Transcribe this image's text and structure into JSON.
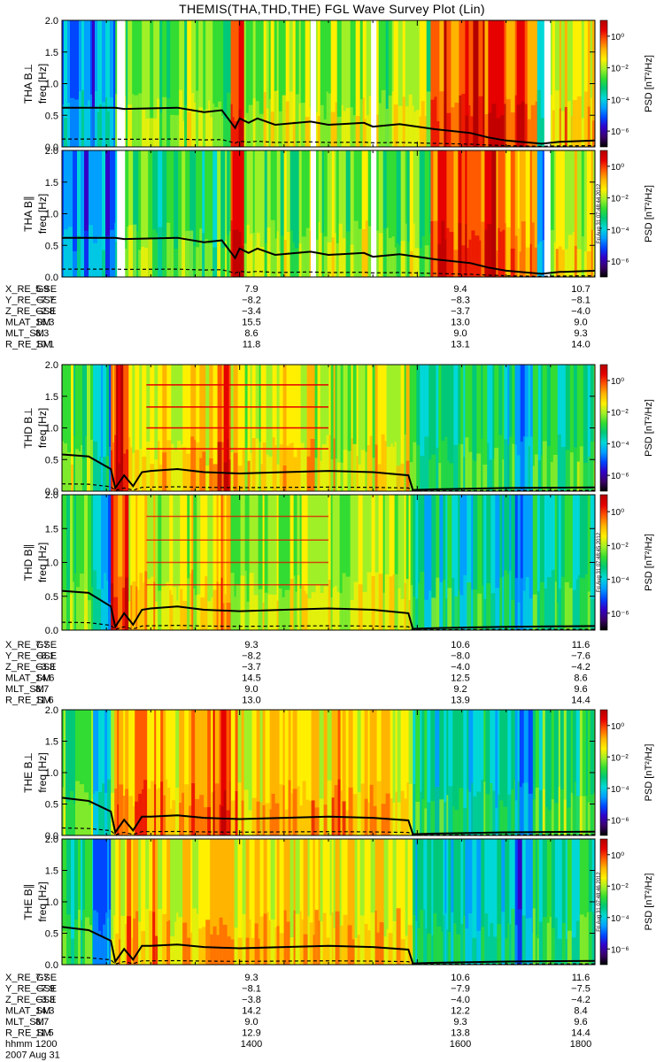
{
  "title": "THEMIS(THA,THD,THE) FGL Wave Survey Plot (Lin)",
  "colors": {
    "colormap": [
      "#000000",
      "#3a006a",
      "#3200c8",
      "#0046ff",
      "#00a0ff",
      "#00d8d8",
      "#00c878",
      "#32dc32",
      "#a0f028",
      "#fff000",
      "#ffb400",
      "#ff5a00",
      "#e60000",
      "#b40000"
    ],
    "trace": "#000000",
    "gap": "#ffffff"
  },
  "stamps": [
    "Fri Aug 31 07:48:44 2012",
    "Fri Aug 31 07:48:45 2012",
    "Fri Aug 31 07:48:46 2012"
  ],
  "chart_data": [
    {
      "type": "heatmap",
      "probe": "THA",
      "time_range": [
        "2007-08-31 12:00",
        "2007-08-31 18:00"
      ],
      "panels": [
        {
          "ylabel": "THA B⊥",
          "unit": "freq [Hz]",
          "ylim": [
            0,
            2.0
          ],
          "yticks": [
            "0.0",
            "0.5",
            "1.0",
            "1.5",
            "2.0"
          ]
        },
        {
          "ylabel": "THA B∥",
          "unit": "freq [Hz]",
          "ylim": [
            0,
            2.0
          ],
          "yticks": [
            "0.0",
            "0.5",
            "1.0",
            "1.5",
            "2.0"
          ]
        }
      ],
      "colorbar": {
        "label": "PSD [nT²/Hz]",
        "scale": "log",
        "range": [
          1e-07,
          10.0
        ],
        "ticks": [
          "10⁰",
          "10⁻²",
          "10⁻⁴",
          "10⁻⁶"
        ]
      },
      "gaps_hours": [
        [
          12.62,
          12.71
        ],
        [
          14.8,
          14.86
        ],
        [
          15.48,
          15.54
        ],
        [
          17.43,
          17.5
        ]
      ],
      "bands": [
        {
          "from": 12.0,
          "to": 12.6,
          "level": 0.3
        },
        {
          "from": 12.6,
          "to": 13.9,
          "level": 0.55
        },
        {
          "from": 13.9,
          "to": 14.05,
          "level": 0.9
        },
        {
          "from": 14.05,
          "to": 16.15,
          "level": 0.6
        },
        {
          "from": 16.15,
          "to": 17.0,
          "level": 0.9
        },
        {
          "from": 17.0,
          "to": 17.35,
          "level": 0.85
        },
        {
          "from": 17.35,
          "to": 17.43,
          "level": 0.35
        },
        {
          "from": 17.5,
          "to": 18.0,
          "level": 0.7
        }
      ],
      "gyro_trace": {
        "x": [
          12.0,
          12.6,
          12.7,
          13.3,
          13.6,
          13.8,
          13.95,
          14.0,
          14.1,
          14.2,
          14.4,
          14.8,
          15.0,
          15.4,
          15.5,
          15.8,
          16.2,
          16.6,
          16.8,
          17.0,
          17.4,
          17.6,
          18.0
        ],
        "y": [
          0.62,
          0.62,
          0.6,
          0.62,
          0.55,
          0.58,
          0.3,
          0.45,
          0.38,
          0.45,
          0.35,
          0.4,
          0.35,
          0.38,
          0.32,
          0.36,
          0.28,
          0.22,
          0.15,
          0.1,
          0.05,
          0.08,
          0.1
        ]
      },
      "ephemeris": {
        "hhmm": [
          "1200",
          "1400",
          "1600",
          "1800"
        ],
        "rows": [
          {
            "label": "X_RE_GSE",
            "values": [
              "5.9",
              "7.9",
              "9.4",
              "10.7"
            ]
          },
          {
            "label": "Y_RE_GSE",
            "values": [
              "−7.7",
              "−8.2",
              "−8.3",
              "−8.1"
            ]
          },
          {
            "label": "Z_RE_GSE",
            "values": [
              "−2.8",
              "−3.4",
              "−3.7",
              "−4.0"
            ]
          },
          {
            "label": "MLAT_SM",
            "values": [
              "16.3",
              "15.5",
              "13.0",
              "9.0"
            ]
          },
          {
            "label": "MLT_SM",
            "values": [
              "8.3",
              "8.6",
              "9.0",
              "9.3"
            ]
          },
          {
            "label": "R_RE_SM",
            "values": [
              "10.1",
              "11.8",
              "13.1",
              "14.0"
            ]
          }
        ]
      }
    },
    {
      "type": "heatmap",
      "probe": "THD",
      "time_range": [
        "2007-08-31 12:00",
        "2007-08-31 18:00"
      ],
      "panels": [
        {
          "ylabel": "THD B⊥",
          "unit": "freq [Hz]",
          "ylim": [
            0,
            2.0
          ],
          "yticks": [
            "0.0",
            "0.5",
            "1.0",
            "1.5",
            "2.0"
          ]
        },
        {
          "ylabel": "THD B∥",
          "unit": "freq [Hz]",
          "ylim": [
            0,
            2.0
          ],
          "yticks": [
            "0.0",
            "0.5",
            "1.0",
            "1.5",
            "2.0"
          ]
        }
      ],
      "colorbar": {
        "label": "PSD [nT²/Hz]",
        "scale": "log",
        "range": [
          1e-07,
          10.0
        ],
        "ticks": [
          "10⁰",
          "10⁻²",
          "10⁻⁴",
          "10⁻⁶"
        ]
      },
      "gaps_hours": [],
      "bands": [
        {
          "from": 12.0,
          "to": 12.35,
          "level": 0.55
        },
        {
          "from": 12.35,
          "to": 12.55,
          "level": 0.35
        },
        {
          "from": 12.55,
          "to": 12.75,
          "level": 0.88
        },
        {
          "from": 12.75,
          "to": 13.7,
          "level": 0.68
        },
        {
          "from": 13.7,
          "to": 13.9,
          "level": 0.82
        },
        {
          "from": 13.9,
          "to": 15.95,
          "level": 0.65
        },
        {
          "from": 15.95,
          "to": 17.1,
          "level": 0.45
        },
        {
          "from": 17.1,
          "to": 17.3,
          "level": 0.3
        },
        {
          "from": 17.3,
          "to": 18.0,
          "level": 0.5
        }
      ],
      "lines_hz": [
        1.68,
        1.33,
        1.0,
        0.67
      ],
      "gyro_trace": {
        "x": [
          12.0,
          12.3,
          12.55,
          12.6,
          12.7,
          12.8,
          12.9,
          13.0,
          13.3,
          13.6,
          14.0,
          14.5,
          15.0,
          15.5,
          15.9,
          15.95,
          16.2,
          17.0,
          18.0
        ],
        "y": [
          0.58,
          0.55,
          0.35,
          0.05,
          0.25,
          0.08,
          0.3,
          0.32,
          0.35,
          0.3,
          0.28,
          0.3,
          0.32,
          0.3,
          0.25,
          0.02,
          0.03,
          0.05,
          0.06
        ]
      },
      "ephemeris": {
        "hhmm": [
          "1200",
          "1400",
          "1600",
          "1800"
        ],
        "rows": [
          {
            "label": "X_RE_GSE",
            "values": [
              "7.7",
              "9.3",
              "10.6",
              "11.6"
            ]
          },
          {
            "label": "Y_RE_GSE",
            "values": [
              "−8.1",
              "−8.2",
              "−8.0",
              "−7.6"
            ]
          },
          {
            "label": "Z_RE_GSE",
            "values": [
              "−3.3",
              "−3.7",
              "−4.0",
              "−4.2"
            ]
          },
          {
            "label": "MLAT_SM",
            "values": [
              "14.6",
              "14.5",
              "12.5",
              "8.6"
            ]
          },
          {
            "label": "MLT_SM",
            "values": [
              "8.7",
              "9.0",
              "9.2",
              "9.6"
            ]
          },
          {
            "label": "R_RE_SM",
            "values": [
              "11.6",
              "13.0",
              "13.9",
              "14.4"
            ]
          }
        ]
      }
    },
    {
      "type": "heatmap",
      "probe": "THE",
      "time_range": [
        "2007-08-31 12:00",
        "2007-08-31 18:00"
      ],
      "panels": [
        {
          "ylabel": "THE B⊥",
          "unit": "freq [Hz]",
          "ylim": [
            0,
            2.0
          ],
          "yticks": [
            "0.0",
            "0.5",
            "1.0",
            "1.5",
            "2.0"
          ]
        },
        {
          "ylabel": "THE B∥",
          "unit": "freq [Hz]",
          "ylim": [
            0,
            2.0
          ],
          "yticks": [
            "0.0",
            "0.5",
            "1.0",
            "1.5",
            "2.0"
          ]
        }
      ],
      "colorbar": {
        "label": "PSD [nT²/Hz]",
        "scale": "log",
        "range": [
          1e-07,
          10.0
        ],
        "ticks": [
          "10⁰",
          "10⁻²",
          "10⁻⁴",
          "10⁻⁶"
        ]
      },
      "gaps_hours": [],
      "bands": [
        {
          "from": 12.0,
          "to": 12.35,
          "level": 0.55
        },
        {
          "from": 12.35,
          "to": 12.55,
          "level": 0.35
        },
        {
          "from": 12.55,
          "to": 13.7,
          "level": 0.75
        },
        {
          "from": 13.7,
          "to": 13.9,
          "level": 0.85
        },
        {
          "from": 13.9,
          "to": 15.95,
          "level": 0.72
        },
        {
          "from": 15.95,
          "to": 17.1,
          "level": 0.45
        },
        {
          "from": 17.1,
          "to": 17.3,
          "level": 0.3
        },
        {
          "from": 17.3,
          "to": 18.0,
          "level": 0.5
        }
      ],
      "gyro_trace": {
        "x": [
          12.0,
          12.3,
          12.55,
          12.6,
          12.7,
          12.8,
          12.9,
          13.0,
          13.3,
          13.6,
          14.0,
          14.5,
          15.0,
          15.5,
          15.9,
          15.95,
          16.2,
          17.0,
          18.0
        ],
        "y": [
          0.6,
          0.55,
          0.38,
          0.05,
          0.25,
          0.08,
          0.3,
          0.3,
          0.32,
          0.28,
          0.26,
          0.28,
          0.3,
          0.28,
          0.24,
          0.02,
          0.03,
          0.05,
          0.06
        ]
      },
      "ephemeris": {
        "hhmm": [
          "1200",
          "1400",
          "1600",
          "1800"
        ],
        "rows": [
          {
            "label": "X_RE_GSE",
            "values": [
              "7.7",
              "9.3",
              "10.6",
              "11.6"
            ]
          },
          {
            "label": "Y_RE_GSE",
            "values": [
              "−7.9",
              "−8.1",
              "−7.9",
              "−7.5"
            ]
          },
          {
            "label": "Z_RE_GSE",
            "values": [
              "−3.3",
              "−3.8",
              "−4.0",
              "−4.2"
            ]
          },
          {
            "label": "MLAT_SM",
            "values": [
              "14.3",
              "14.2",
              "12.2",
              "8.4"
            ]
          },
          {
            "label": "MLT_SM",
            "values": [
              "8.7",
              "9.0",
              "9.3",
              "9.6"
            ]
          },
          {
            "label": "R_RE_SM",
            "values": [
              "11.5",
              "12.9",
              "13.8",
              "14.4"
            ]
          }
        ]
      }
    }
  ],
  "footer": {
    "hhmm_label": "hhmm",
    "date": "2007 Aug 31"
  }
}
